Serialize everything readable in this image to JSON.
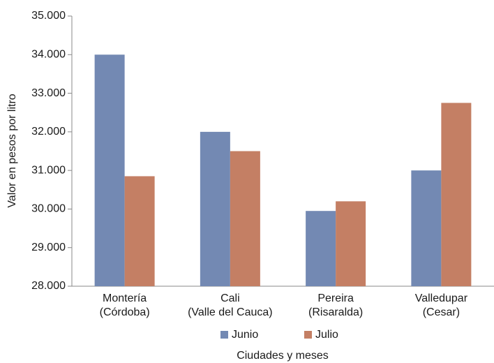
{
  "chart_data": {
    "type": "bar",
    "x_label": "Ciudades y meses",
    "y_label": "Valor en pesos por litro",
    "categories": [
      "Montería\n(Córdoba)",
      "Cali\n(Valle del Cauca)",
      "Pereira\n(Risaralda)",
      "Valledupar\n(Cesar)"
    ],
    "series": [
      {
        "name": "Junio",
        "color": "#7389b3",
        "values": [
          34000,
          32000,
          29950,
          31000
        ]
      },
      {
        "name": "Julio",
        "color": "#c47f64",
        "values": [
          30850,
          31500,
          30200,
          32750
        ]
      }
    ],
    "ylim": [
      28000,
      35000
    ],
    "yticks": [
      {
        "value": 28000,
        "label": "28.000"
      },
      {
        "value": 29000,
        "label": "29.000"
      },
      {
        "value": 30000,
        "label": "30.000"
      },
      {
        "value": 31000,
        "label": "31.000"
      },
      {
        "value": 32000,
        "label": "32.000"
      },
      {
        "value": 33000,
        "label": "33.000"
      },
      {
        "value": 34000,
        "label": "34.000"
      },
      {
        "value": 35000,
        "label": "35.000"
      }
    ],
    "grid": false
  }
}
